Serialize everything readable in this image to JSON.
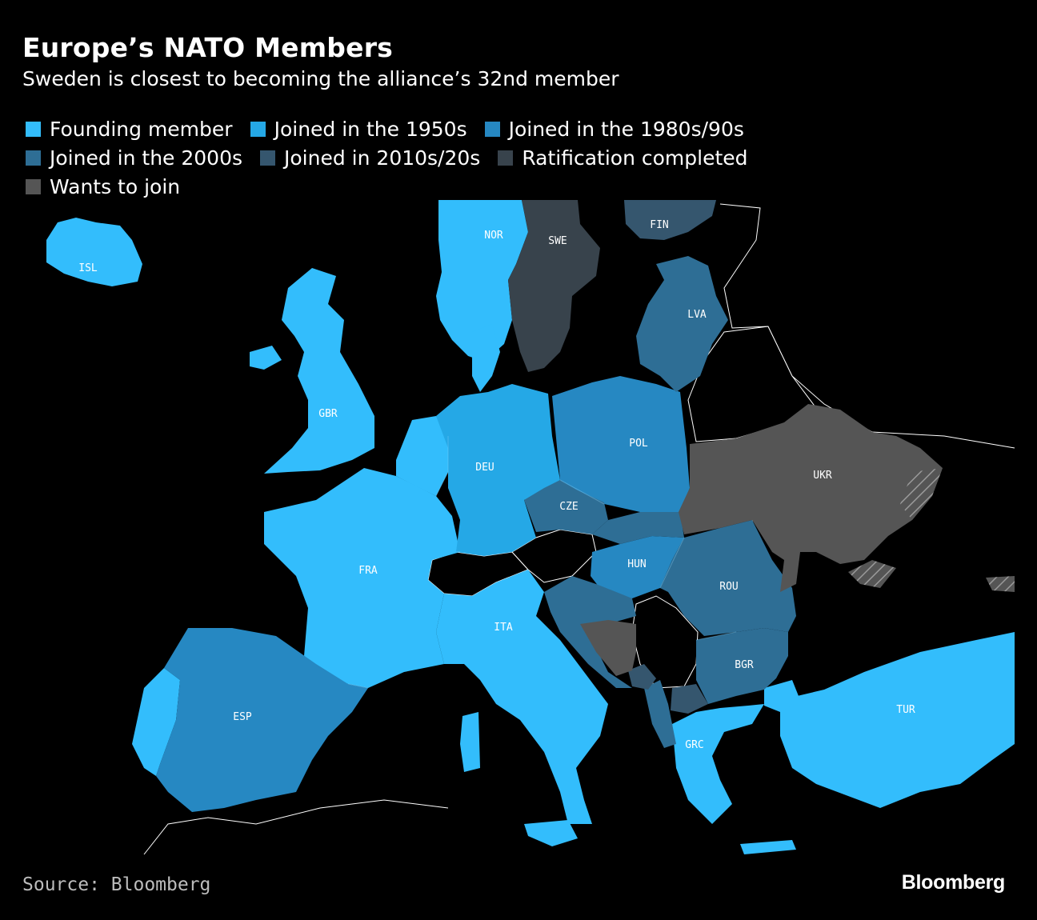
{
  "title": "Europe’s NATO Members",
  "subtitle": "Sweden is closest to becoming the alliance’s 32nd member",
  "legend": [
    {
      "label": "Founding member",
      "color": "#33bdfc"
    },
    {
      "label": "Joined in the 1950s",
      "color": "#25a8e6"
    },
    {
      "label": "Joined in the 1980s/90s",
      "color": "#2688c2"
    },
    {
      "label": "Joined in the 2000s",
      "color": "#2e6e95"
    },
    {
      "label": "Joined in 2010s/20s",
      "color": "#35566e"
    },
    {
      "label": "Ratification completed",
      "color": "#38434c"
    },
    {
      "label": "Wants to join",
      "color": "#555555"
    }
  ],
  "countries": {
    "isl": "ISL",
    "nor": "NOR",
    "swe": "SWE",
    "fin": "FIN",
    "lva": "LVA",
    "gbr": "GBR",
    "deu": "DEU",
    "pol": "POL",
    "ukr": "UKR",
    "cze": "CZE",
    "fra": "FRA",
    "hun": "HUN",
    "rou": "ROU",
    "ita": "ITA",
    "bgr": "BGR",
    "esp": "ESP",
    "tur": "TUR",
    "grc": "GRC"
  },
  "source": "Source: Bloomberg",
  "brand": "Bloomberg"
}
